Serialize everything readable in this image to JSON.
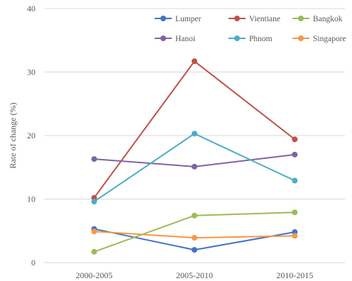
{
  "chart_data": {
    "type": "line",
    "title": "",
    "xlabel": "",
    "ylabel": "Rate of change (%)",
    "ylim": [
      0,
      40
    ],
    "yticks": [
      0,
      10,
      20,
      30,
      40
    ],
    "grid": "horizontal",
    "legend_placement": "top-right",
    "categories": [
      "2000-2005",
      "2005-2010",
      "2010-2015"
    ],
    "series": [
      {
        "name": "Lumper",
        "color": "#4472c4",
        "values": [
          5.3,
          2.0,
          4.8
        ]
      },
      {
        "name": "Vientiane",
        "color": "#c0504d",
        "values": [
          10.2,
          31.7,
          19.4
        ]
      },
      {
        "name": "Bangkok",
        "color": "#9bbb59",
        "values": [
          1.7,
          7.4,
          7.9
        ]
      },
      {
        "name": "Hanoi",
        "color": "#8064a2",
        "values": [
          16.3,
          15.1,
          17.0
        ]
      },
      {
        "name": "Phnom",
        "color": "#4bacc6",
        "values": [
          9.6,
          20.3,
          12.9
        ]
      },
      {
        "name": "Singapore",
        "color": "#f79646",
        "values": [
          4.9,
          3.9,
          4.2
        ]
      }
    ]
  }
}
